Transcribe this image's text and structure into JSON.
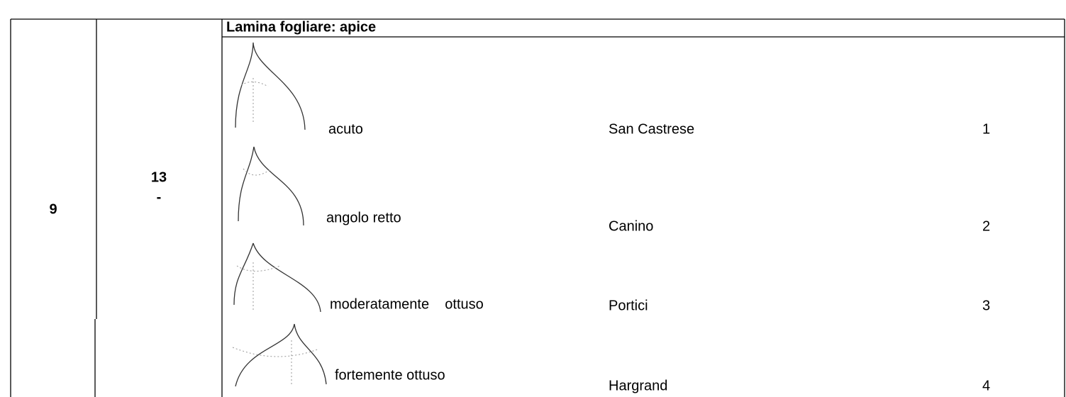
{
  "table": {
    "number": "9",
    "code": "13",
    "dash": "-",
    "heading": "Lamina fogliare: apice",
    "rows": [
      {
        "label": "acuto",
        "variety": "San Castrese",
        "note": "1"
      },
      {
        "label": "angolo retto",
        "variety": "Canino",
        "note": "2"
      },
      {
        "label": "moderatamente    ottuso",
        "variety": "Portici",
        "note": "3"
      },
      {
        "label": "fortemente ottuso",
        "variety": "Hargrand",
        "note": "4"
      }
    ]
  }
}
